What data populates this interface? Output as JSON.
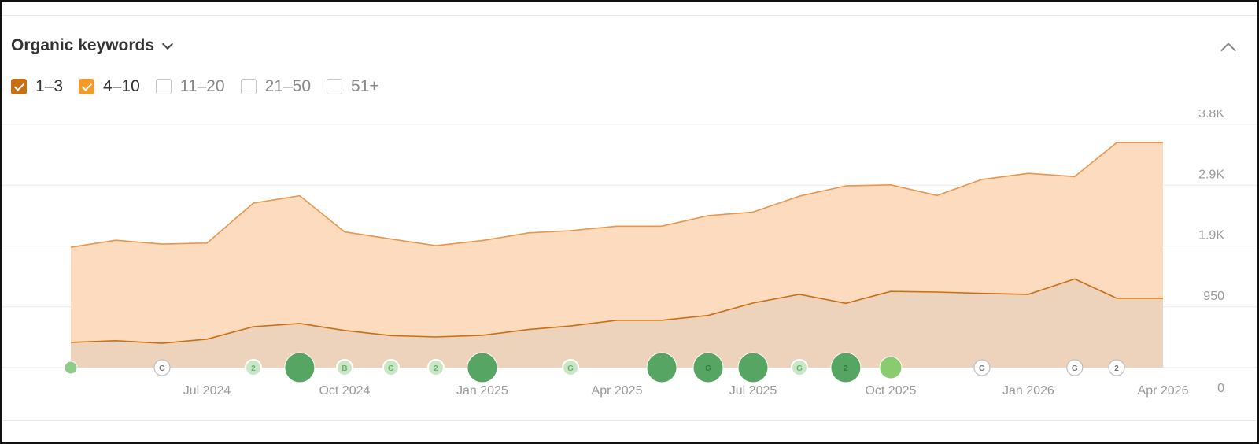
{
  "widget": {
    "title": "Organic keywords",
    "filters": [
      {
        "label": "1–3",
        "checked": true,
        "color": "#C96F15"
      },
      {
        "label": "4–10",
        "checked": true,
        "color": "#F39A2C"
      },
      {
        "label": "11–20",
        "checked": false
      },
      {
        "label": "21–50",
        "checked": false
      },
      {
        "label": "51+",
        "checked": false
      }
    ]
  },
  "chart_data": {
    "type": "area",
    "stacked": true,
    "grid": true,
    "x_range": [
      "2024-04-01",
      "2026-04-01"
    ],
    "x_ticks": [
      {
        "date": "2024-07-01",
        "label": "Jul 2024"
      },
      {
        "date": "2024-10-01",
        "label": "Oct 2024"
      },
      {
        "date": "2025-01-01",
        "label": "Jan 2025"
      },
      {
        "date": "2025-04-01",
        "label": "Apr 2025"
      },
      {
        "date": "2025-07-01",
        "label": "Jul 2025"
      },
      {
        "date": "2025-10-01",
        "label": "Oct 2025"
      },
      {
        "date": "2026-01-01",
        "label": "Jan 2026"
      },
      {
        "date": "2026-04-01",
        "label": "Apr 2026"
      }
    ],
    "y_ticks": [
      {
        "value": 0,
        "label": "0"
      },
      {
        "value": 950,
        "label": "950"
      },
      {
        "value": 1900,
        "label": "1.9K"
      },
      {
        "value": 2850,
        "label": "2.9K"
      },
      {
        "value": 3800,
        "label": "3.8K"
      }
    ],
    "ylim": [
      0,
      3800
    ],
    "x": [
      "2024-04-01",
      "2024-05-01",
      "2024-06-01",
      "2024-07-01",
      "2024-08-01",
      "2024-09-01",
      "2024-10-01",
      "2024-11-01",
      "2024-12-01",
      "2025-01-01",
      "2025-02-01",
      "2025-03-01",
      "2025-04-01",
      "2025-05-01",
      "2025-06-01",
      "2025-07-01",
      "2025-08-01",
      "2025-09-01",
      "2025-10-01",
      "2025-11-01",
      "2025-12-01",
      "2026-01-01",
      "2026-02-01",
      "2026-03-01",
      "2026-04-01"
    ],
    "series": [
      {
        "name": "1–3",
        "line_color": "#C96F15",
        "fill_color": "#EDD2BC",
        "values": [
          395,
          420,
          380,
          445,
          640,
          690,
          580,
          500,
          480,
          505,
          595,
          650,
          740,
          740,
          815,
          1010,
          1145,
          1005,
          1190,
          1180,
          1160,
          1145,
          1385,
          1085,
          1085
        ]
      },
      {
        "name": "4–10",
        "line_color": "#E8964E",
        "fill_color": "#FDDBBF",
        "values": [
          1485,
          1570,
          1550,
          1500,
          1930,
          1995,
          1540,
          1510,
          1425,
          1480,
          1510,
          1490,
          1470,
          1470,
          1560,
          1420,
          1535,
          1835,
          1665,
          1510,
          1780,
          1890,
          1600,
          2430,
          2430
        ]
      }
    ],
    "event_markers": [
      {
        "date": "2024-04-01",
        "type": "dot",
        "size": "xs",
        "color": "#8FCB8A"
      },
      {
        "date": "2024-06-01",
        "type": "G",
        "size": "sm",
        "style": "outline"
      },
      {
        "date": "2024-08-01",
        "type": "2",
        "size": "sm",
        "style": "pale"
      },
      {
        "date": "2024-09-01",
        "type": "dot",
        "size": "lg",
        "color": "#56A563"
      },
      {
        "date": "2024-10-01",
        "type": "B",
        "size": "sm",
        "style": "pale"
      },
      {
        "date": "2024-11-01",
        "type": "G",
        "size": "sm",
        "style": "pale"
      },
      {
        "date": "2024-12-01",
        "type": "2",
        "size": "sm",
        "style": "pale"
      },
      {
        "date": "2025-01-01",
        "type": "dot",
        "size": "lg",
        "color": "#56A563"
      },
      {
        "date": "2025-03-01",
        "type": "G",
        "size": "sm",
        "style": "pale"
      },
      {
        "date": "2025-05-01",
        "type": "dot",
        "size": "lg",
        "color": "#56A563"
      },
      {
        "date": "2025-06-01",
        "type": "G",
        "size": "lg",
        "color": "#56A563"
      },
      {
        "date": "2025-07-01",
        "type": "dot",
        "size": "lg",
        "color": "#56A563"
      },
      {
        "date": "2025-08-01",
        "type": "G",
        "size": "sm",
        "style": "pale"
      },
      {
        "date": "2025-09-01",
        "type": "2",
        "size": "lg",
        "color": "#56A563"
      },
      {
        "date": "2025-10-01",
        "type": "dot",
        "size": "md",
        "color": "#8ACB6F"
      },
      {
        "date": "2025-12-01",
        "type": "G",
        "size": "sm",
        "style": "outline"
      },
      {
        "date": "2026-02-01",
        "type": "G",
        "size": "sm",
        "style": "outline"
      },
      {
        "date": "2026-03-01",
        "type": "2",
        "size": "sm",
        "style": "outline"
      }
    ]
  }
}
